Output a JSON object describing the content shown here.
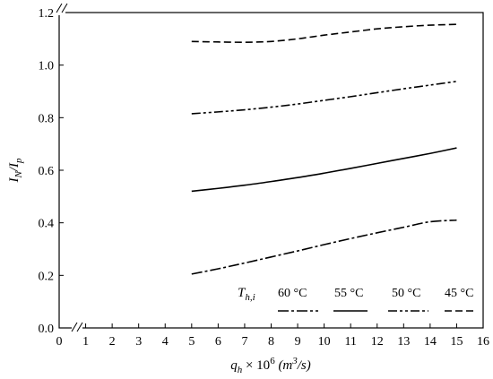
{
  "chart_data": {
    "type": "line",
    "xlabel": {
      "base": "q",
      "sub": "h",
      "times": " × 10",
      "sup": "6",
      "unit_open": " (m",
      "unit_sup": "3",
      "unit_close": "/s)"
    },
    "ylabel": {
      "i": "I",
      "i_sub": "N",
      "slash": "/",
      "p": "I",
      "p_sub": "p"
    },
    "xlim": [
      0,
      16
    ],
    "ylim": [
      0.0,
      1.2
    ],
    "x_ticks": [
      0,
      1,
      2,
      3,
      4,
      5,
      6,
      7,
      8,
      9,
      10,
      11,
      12,
      13,
      14,
      15,
      16
    ],
    "y_ticks": [
      0.0,
      0.2,
      0.4,
      0.6,
      0.8,
      1.0,
      1.2
    ],
    "y_tick_labels": [
      "0.0",
      "0.2",
      "0.4",
      "0.6",
      "0.8",
      "1.0",
      "1.2"
    ],
    "axis_breaks": [
      "x",
      "y"
    ],
    "grid": false,
    "x": [
      5,
      6,
      7,
      8,
      9,
      10,
      11,
      12,
      13,
      14,
      15
    ],
    "series": [
      {
        "name": "60 °C",
        "dash": "dashdot",
        "values": [
          0.205,
          0.225,
          0.247,
          0.27,
          0.293,
          0.317,
          0.34,
          0.362,
          0.383,
          0.404,
          0.41
        ]
      },
      {
        "name": "55 °C",
        "dash": "solid",
        "values": [
          0.52,
          0.531,
          0.543,
          0.557,
          0.572,
          0.589,
          0.607,
          0.626,
          0.645,
          0.664,
          0.685
        ]
      },
      {
        "name": "50 °C",
        "dash": "dashdotdot",
        "values": [
          0.815,
          0.822,
          0.83,
          0.84,
          0.852,
          0.866,
          0.88,
          0.895,
          0.91,
          0.924,
          0.938
        ]
      },
      {
        "name": "45 °C",
        "dash": "dashed",
        "values": [
          1.09,
          1.088,
          1.087,
          1.09,
          1.1,
          1.114,
          1.126,
          1.138,
          1.146,
          1.152,
          1.155
        ]
      }
    ],
    "legend": {
      "title": {
        "base": "T",
        "sub": "h,i"
      },
      "placement": "bottom-right",
      "labels": [
        "60 °C",
        "55 °C",
        "50 °C",
        "45 °C"
      ]
    }
  }
}
